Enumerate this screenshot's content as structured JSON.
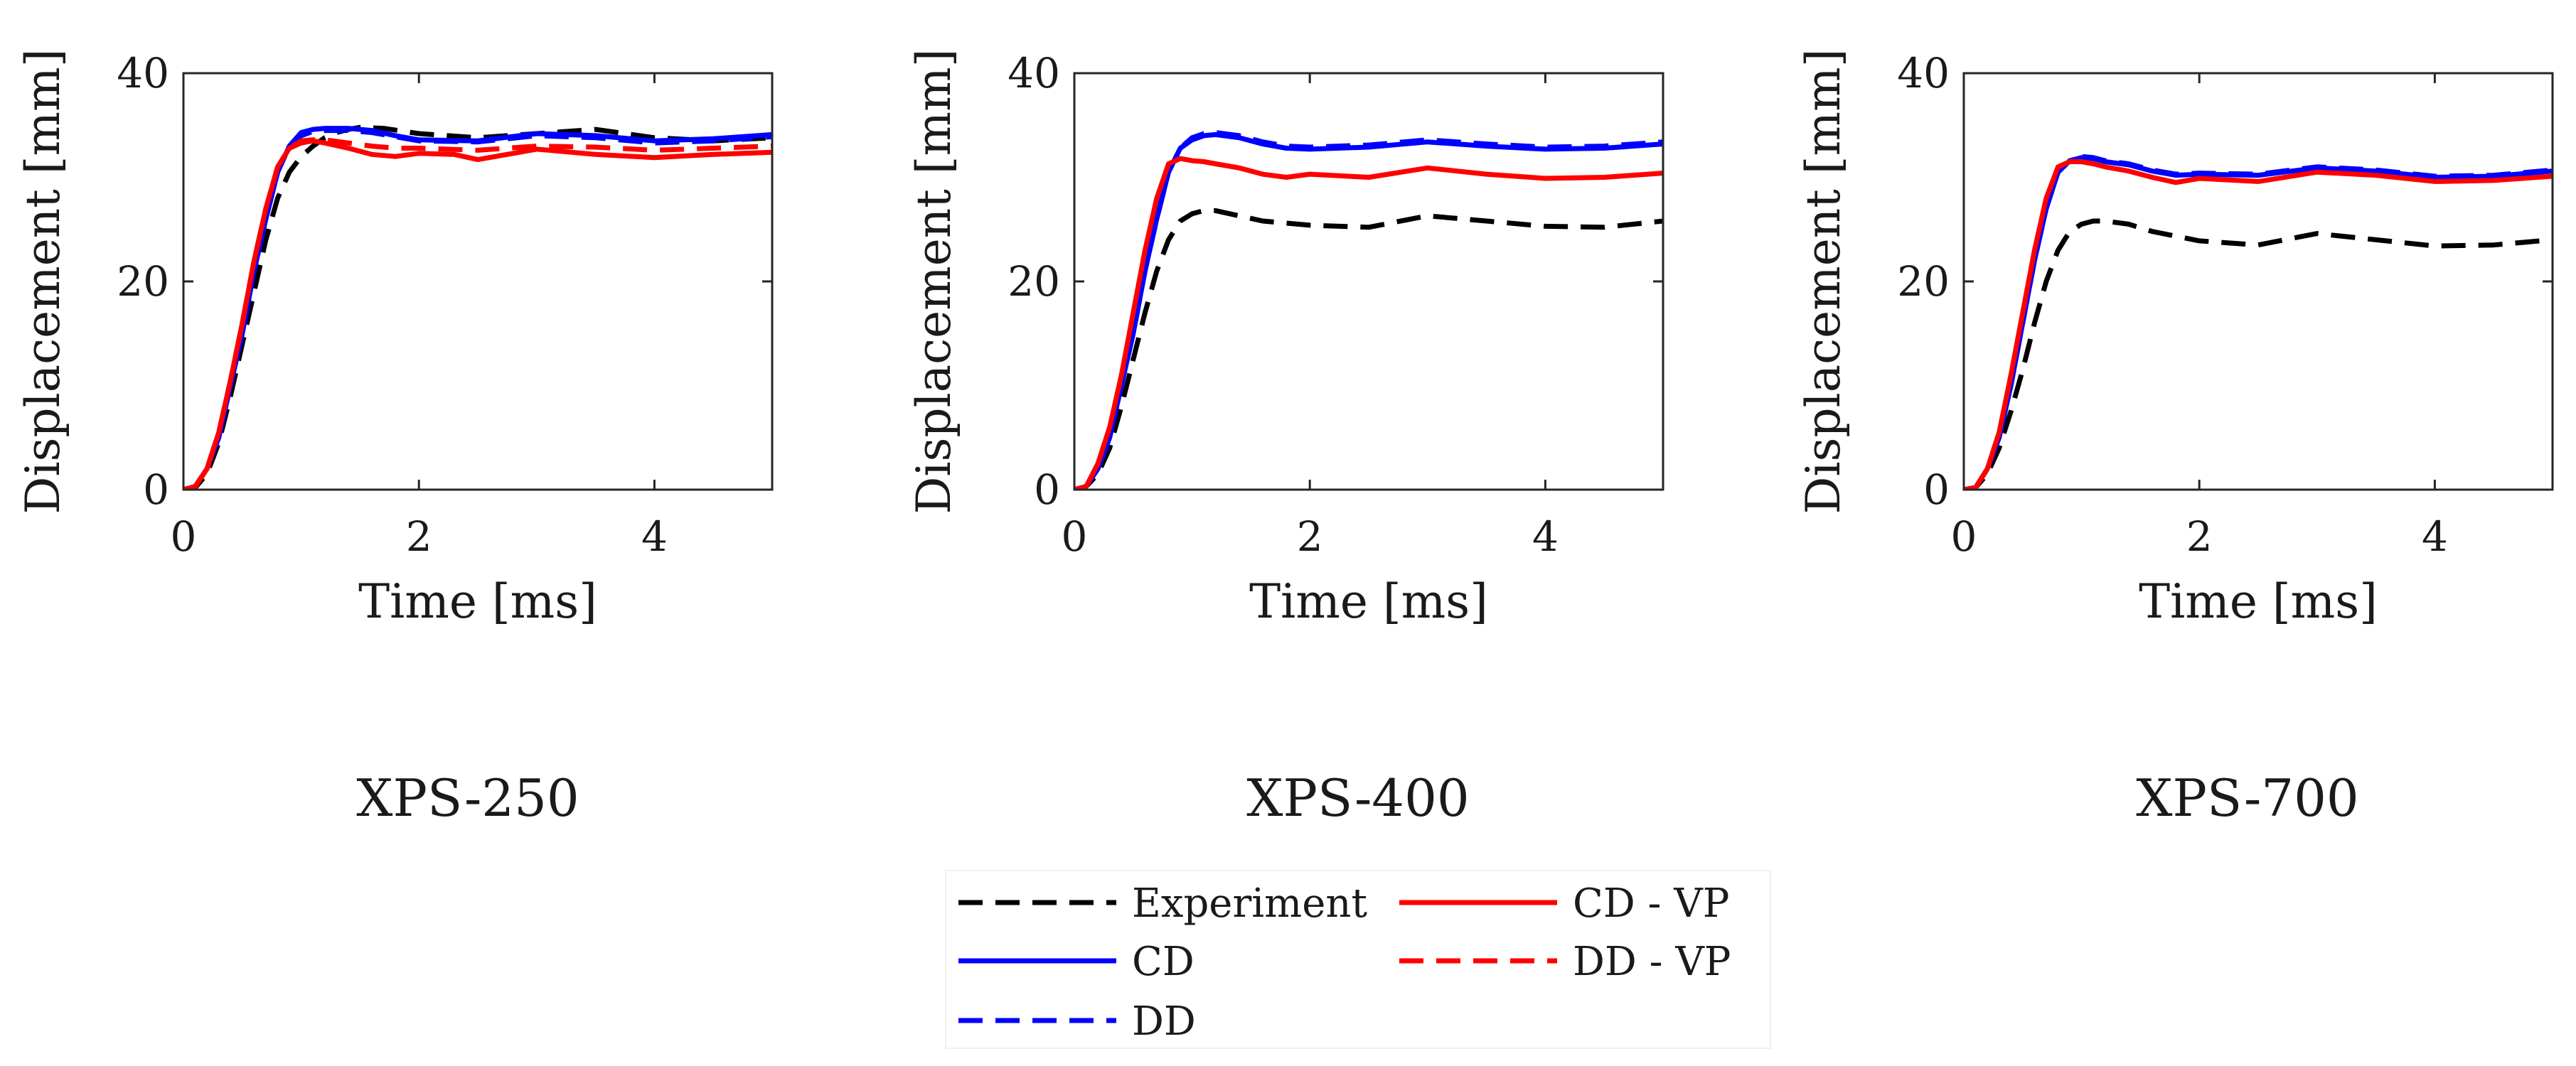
{
  "chart_data": [
    {
      "type": "line",
      "title": "XPS-250",
      "xlabel": "Time [ms]",
      "ylabel": "Displacement [mm]",
      "xlim": [
        0,
        5
      ],
      "ylim": [
        0,
        40
      ],
      "xticks": [
        "0",
        "2",
        "4"
      ],
      "yticks": [
        "0",
        "20",
        "40"
      ],
      "grid": false,
      "series": [
        {
          "name": "Experiment",
          "color": "#000000",
          "dash": "dashed",
          "x": [
            0,
            0.1,
            0.2,
            0.3,
            0.4,
            0.5,
            0.6,
            0.7,
            0.8,
            0.9,
            1.0,
            1.1,
            1.2,
            1.3,
            1.4,
            1.5,
            1.7,
            2.0,
            2.5,
            3.0,
            3.5,
            4.0,
            4.5,
            5.0
          ],
          "y": [
            0,
            0.2,
            1.5,
            4.5,
            9,
            14,
            19,
            24,
            28,
            30.5,
            32,
            33,
            33.8,
            34.3,
            34.6,
            34.8,
            34.7,
            34.2,
            33.8,
            34.2,
            34.6,
            33.8,
            33.5,
            33.8
          ]
        },
        {
          "name": "CD",
          "color": "#0000ff",
          "dash": "solid",
          "x": [
            0,
            0.1,
            0.2,
            0.3,
            0.4,
            0.5,
            0.6,
            0.7,
            0.8,
            0.9,
            1.0,
            1.1,
            1.2,
            1.4,
            1.6,
            1.8,
            2.0,
            2.5,
            3.0,
            3.5,
            4.0,
            4.5,
            5.0
          ],
          "y": [
            0,
            0.3,
            2,
            5,
            10,
            15,
            21,
            26,
            30.5,
            33,
            34.3,
            34.6,
            34.7,
            34.7,
            34.5,
            34.0,
            33.6,
            33.5,
            34.2,
            34.0,
            33.5,
            33.7,
            34.1
          ]
        },
        {
          "name": "DD",
          "color": "#0000ff",
          "dash": "dashed",
          "x": [
            0,
            0.1,
            0.2,
            0.3,
            0.4,
            0.5,
            0.6,
            0.7,
            0.8,
            0.9,
            1.0,
            1.1,
            1.2,
            1.4,
            1.6,
            1.8,
            2.0,
            2.5,
            3.0,
            3.5,
            4.0,
            4.5,
            5.0
          ],
          "y": [
            0,
            0.3,
            2,
            5,
            10,
            15,
            21,
            26,
            30.5,
            33,
            34.0,
            34.4,
            34.5,
            34.5,
            34.3,
            33.9,
            33.5,
            33.4,
            34.0,
            33.8,
            33.3,
            33.5,
            33.9
          ]
        },
        {
          "name": "CD - VP",
          "color": "#ff0000",
          "dash": "solid",
          "x": [
            0,
            0.1,
            0.2,
            0.3,
            0.4,
            0.5,
            0.6,
            0.7,
            0.8,
            0.9,
            1.0,
            1.1,
            1.2,
            1.4,
            1.6,
            1.8,
            2.0,
            2.3,
            2.5,
            2.8,
            3.0,
            3.5,
            4.0,
            4.5,
            5.0
          ],
          "y": [
            0,
            0.3,
            2,
            5.5,
            10.5,
            16,
            22,
            27,
            31,
            32.8,
            33.3,
            33.5,
            33.3,
            32.8,
            32.2,
            32.0,
            32.3,
            32.2,
            31.7,
            32.3,
            32.7,
            32.2,
            31.9,
            32.2,
            32.4
          ]
        },
        {
          "name": "DD - VP",
          "color": "#ff0000",
          "dash": "dashed",
          "x": [
            0,
            0.1,
            0.2,
            0.3,
            0.4,
            0.5,
            0.6,
            0.7,
            0.8,
            0.9,
            1.0,
            1.1,
            1.2,
            1.4,
            1.6,
            1.8,
            2.0,
            2.5,
            3.0,
            3.5,
            4.0,
            4.5,
            5.0
          ],
          "y": [
            0,
            0.3,
            2,
            5.5,
            10.5,
            16,
            22,
            27,
            31,
            32.8,
            33.5,
            33.6,
            33.6,
            33.3,
            33.0,
            32.8,
            32.8,
            32.6,
            33.0,
            32.9,
            32.6,
            32.8,
            33.0
          ]
        }
      ]
    },
    {
      "type": "line",
      "title": "XPS-400",
      "xlabel": "Time [ms]",
      "ylabel": "Displacement [mm]",
      "xlim": [
        0,
        5
      ],
      "ylim": [
        0,
        40
      ],
      "xticks": [
        "0",
        "2",
        "4"
      ],
      "yticks": [
        "0",
        "20",
        "40"
      ],
      "grid": false,
      "series": [
        {
          "name": "Experiment",
          "color": "#000000",
          "dash": "dashed",
          "x": [
            0,
            0.1,
            0.2,
            0.3,
            0.4,
            0.5,
            0.6,
            0.7,
            0.8,
            0.9,
            1.0,
            1.1,
            1.2,
            1.4,
            1.6,
            2.0,
            2.5,
            3.0,
            3.5,
            4.0,
            4.5,
            5.0
          ],
          "y": [
            0,
            0.3,
            1.5,
            4,
            8,
            12.5,
            17,
            21,
            24,
            25.8,
            26.5,
            26.8,
            26.8,
            26.3,
            25.8,
            25.4,
            25.2,
            26.3,
            25.8,
            25.3,
            25.2,
            25.8
          ]
        },
        {
          "name": "CD",
          "color": "#0000ff",
          "dash": "solid",
          "x": [
            0,
            0.1,
            0.2,
            0.3,
            0.4,
            0.5,
            0.6,
            0.7,
            0.8,
            0.9,
            1.0,
            1.1,
            1.2,
            1.4,
            1.6,
            1.8,
            2.0,
            2.5,
            3.0,
            3.5,
            4.0,
            4.5,
            5.0
          ],
          "y": [
            0,
            0.3,
            2,
            5,
            10,
            15,
            21,
            26,
            30.5,
            32.8,
            33.6,
            34.0,
            34.1,
            33.8,
            33.2,
            32.8,
            32.7,
            32.9,
            33.4,
            33.0,
            32.7,
            32.8,
            33.2
          ]
        },
        {
          "name": "DD",
          "color": "#0000ff",
          "dash": "dashed",
          "x": [
            0,
            0.1,
            0.2,
            0.3,
            0.4,
            0.5,
            0.6,
            0.7,
            0.8,
            0.9,
            1.0,
            1.1,
            1.2,
            1.4,
            1.6,
            1.8,
            2.0,
            2.5,
            3.0,
            3.5,
            4.0,
            4.5,
            5.0
          ],
          "y": [
            0,
            0.3,
            2,
            5,
            10,
            15,
            21,
            26,
            30.5,
            32.8,
            33.8,
            34.2,
            34.3,
            34.0,
            33.4,
            33.0,
            32.9,
            33.1,
            33.6,
            33.2,
            32.9,
            33.0,
            33.4
          ]
        },
        {
          "name": "CD - VP",
          "color": "#ff0000",
          "dash": "solid",
          "x": [
            0,
            0.1,
            0.2,
            0.3,
            0.4,
            0.5,
            0.6,
            0.7,
            0.8,
            0.9,
            1.0,
            1.1,
            1.2,
            1.4,
            1.6,
            1.8,
            2.0,
            2.5,
            3.0,
            3.5,
            4.0,
            4.5,
            5.0
          ],
          "y": [
            0,
            0.3,
            2.5,
            6,
            11,
            17,
            23,
            28,
            31.3,
            31.8,
            31.6,
            31.5,
            31.3,
            30.9,
            30.3,
            30.0,
            30.3,
            30.0,
            30.9,
            30.3,
            29.9,
            30.0,
            30.4
          ]
        }
      ]
    },
    {
      "type": "line",
      "title": "XPS-700",
      "xlabel": "Time [ms]",
      "ylabel": "Displacement [mm]",
      "xlim": [
        0,
        5
      ],
      "ylim": [
        0,
        40
      ],
      "xticks": [
        "0",
        "2",
        "4"
      ],
      "yticks": [
        "0",
        "20",
        "40"
      ],
      "grid": false,
      "series": [
        {
          "name": "Experiment",
          "color": "#000000",
          "dash": "dashed",
          "x": [
            0,
            0.1,
            0.2,
            0.3,
            0.4,
            0.5,
            0.6,
            0.7,
            0.8,
            0.9,
            1.0,
            1.1,
            1.2,
            1.4,
            1.6,
            2.0,
            2.5,
            3.0,
            3.5,
            4.0,
            4.5,
            5.0
          ],
          "y": [
            0,
            0.2,
            1.5,
            4,
            7.5,
            11.5,
            16,
            20,
            23,
            24.8,
            25.5,
            25.8,
            25.8,
            25.5,
            24.8,
            23.9,
            23.5,
            24.6,
            24.0,
            23.4,
            23.5,
            24.0
          ]
        },
        {
          "name": "CD",
          "color": "#0000ff",
          "dash": "solid",
          "x": [
            0,
            0.1,
            0.2,
            0.3,
            0.4,
            0.5,
            0.6,
            0.7,
            0.8,
            0.9,
            1.0,
            1.1,
            1.2,
            1.4,
            1.6,
            1.8,
            2.0,
            2.5,
            3.0,
            3.5,
            4.0,
            4.5,
            5.0
          ],
          "y": [
            0,
            0.2,
            2,
            5,
            10,
            16,
            22,
            27,
            30.5,
            31.6,
            31.9,
            31.8,
            31.5,
            31.2,
            30.6,
            30.2,
            30.3,
            30.2,
            30.9,
            30.6,
            30.0,
            30.1,
            30.6
          ]
        },
        {
          "name": "DD",
          "color": "#0000ff",
          "dash": "dashed",
          "x": [
            0,
            0.1,
            0.2,
            0.3,
            0.4,
            0.5,
            0.6,
            0.7,
            0.8,
            0.9,
            1.0,
            1.1,
            1.2,
            1.4,
            1.6,
            1.8,
            2.0,
            2.5,
            3.0,
            3.5,
            4.0,
            4.5,
            5.0
          ],
          "y": [
            0,
            0.2,
            2,
            5,
            10,
            16,
            22,
            27,
            30.5,
            31.6,
            32.0,
            31.9,
            31.6,
            31.3,
            30.7,
            30.3,
            30.4,
            30.3,
            31.0,
            30.7,
            30.1,
            30.2,
            30.7
          ]
        },
        {
          "name": "CD - VP",
          "color": "#ff0000",
          "dash": "solid",
          "x": [
            0,
            0.1,
            0.2,
            0.3,
            0.4,
            0.5,
            0.6,
            0.7,
            0.8,
            0.9,
            1.0,
            1.1,
            1.2,
            1.4,
            1.6,
            1.8,
            2.0,
            2.5,
            3.0,
            3.5,
            4.0,
            4.5,
            5.0
          ],
          "y": [
            0,
            0.2,
            2,
            5.5,
            11,
            17,
            23,
            28,
            31,
            31.5,
            31.5,
            31.3,
            31.0,
            30.6,
            30.0,
            29.5,
            29.9,
            29.6,
            30.5,
            30.2,
            29.6,
            29.7,
            30.1
          ]
        }
      ]
    }
  ],
  "legend": {
    "items": [
      {
        "label": "Experiment",
        "color": "#000000",
        "dash": "dashed"
      },
      {
        "label": "CD - VP",
        "color": "#ff0000",
        "dash": "solid"
      },
      {
        "label": "CD",
        "color": "#0000ff",
        "dash": "solid"
      },
      {
        "label": "DD - VP",
        "color": "#ff0000",
        "dash": "dashed"
      },
      {
        "label": "DD",
        "color": "#0000ff",
        "dash": "dashed"
      }
    ]
  }
}
